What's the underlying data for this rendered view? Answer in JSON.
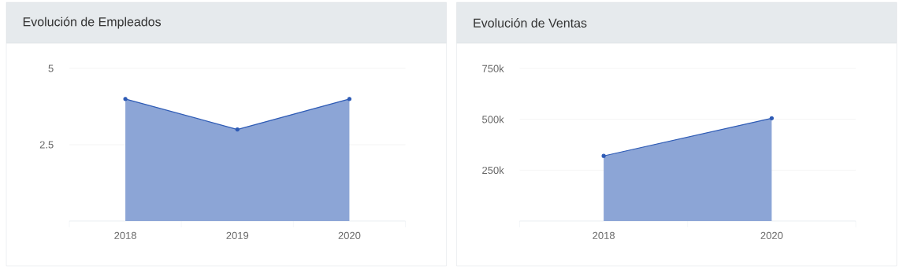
{
  "chart_data": [
    {
      "type": "area",
      "title": "Evolución de Empleados",
      "categories": [
        "2018",
        "2019",
        "2020"
      ],
      "values": [
        4,
        3,
        4
      ],
      "color": "#2e5bb5",
      "ylim": [
        0,
        5
      ],
      "yticks": [
        2.5,
        5
      ],
      "grid": "y",
      "marker": "circle"
    },
    {
      "type": "area",
      "title": "Evolución de Ventas",
      "categories": [
        "2018",
        "2020"
      ],
      "values": [
        320000,
        505000
      ],
      "color": "#2e5bb5",
      "ylim": [
        0,
        750000
      ],
      "yticks": [
        {
          "value": 250000,
          "label": "250k"
        },
        {
          "value": 500000,
          "label": "500k"
        },
        {
          "value": 750000,
          "label": "750k"
        }
      ],
      "grid": "y",
      "marker": "circle"
    }
  ]
}
